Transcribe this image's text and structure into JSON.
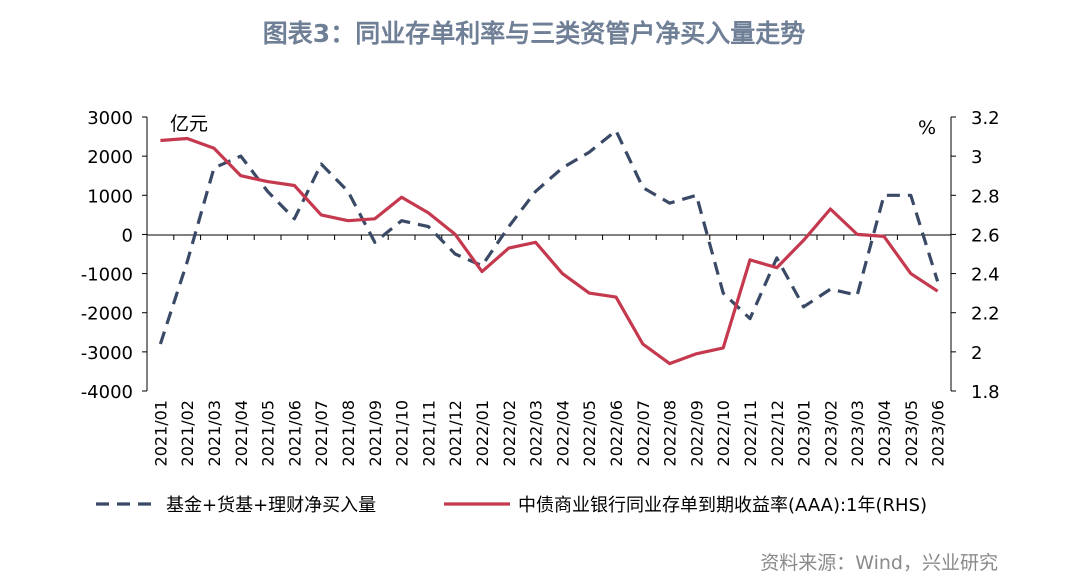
{
  "chart_data": {
    "type": "line",
    "title": "图表3：同业存单利率与三类资管户净买入量走势",
    "y_left_unit": "亿元",
    "y_right_unit": "%",
    "y_left_lim": [
      -4000,
      3000
    ],
    "y_left_ticks": [
      "3000",
      "2000",
      "1000",
      "0",
      "-1000",
      "-2000",
      "-3000",
      "-4000"
    ],
    "y_right_lim": [
      1.8,
      3.2
    ],
    "y_right_ticks": [
      "3.2",
      "3",
      "2.8",
      "2.6",
      "2.4",
      "2.2",
      "2",
      "1.8"
    ],
    "categories": [
      "2021/01",
      "2021/02",
      "2021/03",
      "2021/04",
      "2021/05",
      "2021/06",
      "2021/07",
      "2021/08",
      "2021/09",
      "2021/10",
      "2021/11",
      "2021/12",
      "2022/01",
      "2022/02",
      "2022/03",
      "2022/04",
      "2022/05",
      "2022/06",
      "2022/07",
      "2022/08",
      "2022/09",
      "2022/10",
      "2022/11",
      "2022/12",
      "2023/01",
      "2023/02",
      "2023/03",
      "2023/04",
      "2023/05",
      "2023/06"
    ],
    "series": [
      {
        "name": "基金+货基+理财净买入量",
        "axis": "left",
        "style": "dashed",
        "color": "#3a4a66",
        "values": [
          -2800,
          -700,
          1700,
          2000,
          1100,
          400,
          1800,
          1100,
          -200,
          350,
          200,
          -500,
          -800,
          200,
          1100,
          1700,
          2100,
          2650,
          1200,
          800,
          1000,
          -1500,
          -2150,
          -600,
          -1850,
          -1400,
          -1550,
          1000,
          1000,
          -1200
        ]
      },
      {
        "name": "中债商业银行同业存单到期收益率(AAA):1年(RHS)",
        "axis": "right",
        "style": "solid",
        "color": "#c5394f",
        "values": [
          3.08,
          3.09,
          3.04,
          2.9,
          2.87,
          2.85,
          2.7,
          2.67,
          2.68,
          2.79,
          2.71,
          2.6,
          2.41,
          2.53,
          2.56,
          2.4,
          2.3,
          2.28,
          2.04,
          1.94,
          1.99,
          2.02,
          2.47,
          2.43,
          2.57,
          2.73,
          2.6,
          2.59,
          2.4,
          2.31
        ]
      }
    ],
    "legend_position": "bottom"
  },
  "source": "资料来源：Wind，兴业研究"
}
